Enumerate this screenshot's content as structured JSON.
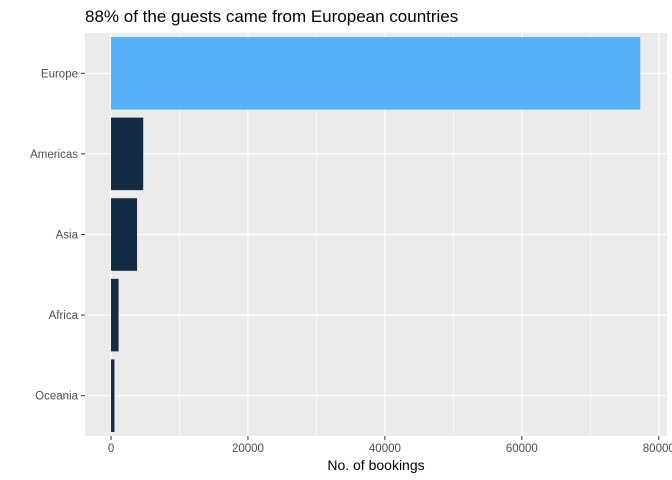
{
  "chart_data": {
    "type": "bar",
    "orientation": "horizontal",
    "title": "88% of the guests came from European countries",
    "xlabel": "No. of bookings",
    "ylabel": "",
    "categories": [
      "Europe",
      "Americas",
      "Asia",
      "Africa",
      "Oceania"
    ],
    "values": [
      77300,
      4700,
      3800,
      1100,
      500
    ],
    "highlight_category": "Europe",
    "xlim": [
      -3800,
      81200
    ],
    "xticks": [
      0,
      20000,
      40000,
      60000,
      80000
    ],
    "xtick_labels": [
      "0",
      "20000",
      "40000",
      "60000",
      "80000"
    ],
    "grid": true,
    "legend": "none",
    "colors": {
      "highlight": "#56B1F7",
      "default": "#132B43",
      "panel": "#EBEBEB",
      "grid": "#FFFFFF"
    }
  }
}
